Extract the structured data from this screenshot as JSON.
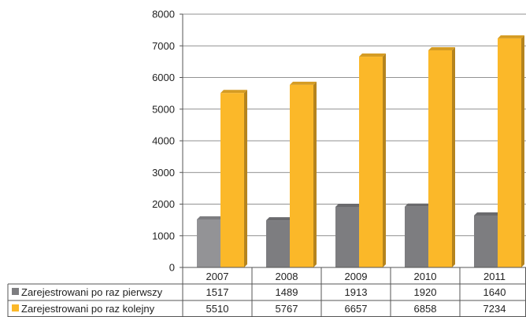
{
  "chart_data": {
    "type": "bar",
    "categories": [
      "2007",
      "2008",
      "2009",
      "2010",
      "2011"
    ],
    "series": [
      {
        "name": "Zarejestrowani po raz pierwszy",
        "values": [
          1517,
          1489,
          1913,
          1920,
          1640
        ],
        "color": "#7d7d80"
      },
      {
        "name": "Zarejestrowani po raz kolejny",
        "values": [
          5510,
          5767,
          6657,
          6858,
          7234
        ],
        "color": "#fbb829"
      }
    ],
    "ylim": [
      0,
      8000
    ],
    "yticks": [
      "0",
      "1000",
      "2000",
      "3000",
      "4000",
      "5000",
      "6000",
      "7000",
      "8000"
    ],
    "grid": true,
    "legend": "data-table-left"
  }
}
